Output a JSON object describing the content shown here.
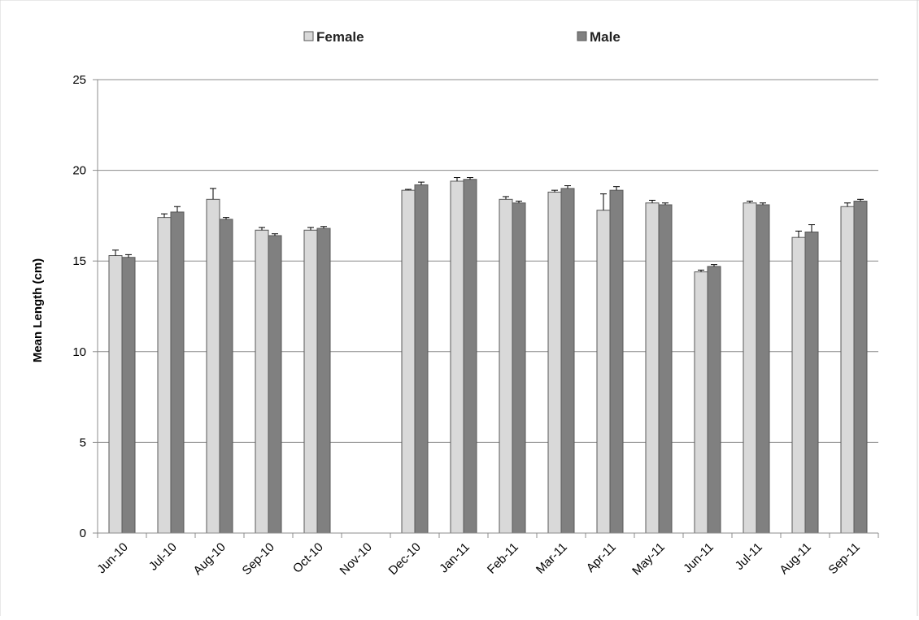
{
  "chart_data": {
    "type": "bar",
    "title": "",
    "xlabel": "",
    "ylabel": "Mean Length (cm)",
    "ylim": [
      0,
      25
    ],
    "yticks": [
      0,
      5,
      10,
      15,
      20,
      25
    ],
    "grid": "horizontal",
    "legend_position": "top-center",
    "error_bars": true,
    "categories": [
      "Jun-10",
      "Jul-10",
      "Aug-10",
      "Sep-10",
      "Oct-10",
      "Nov-10",
      "Dec-10",
      "Jan-11",
      "Feb-11",
      "Mar-11",
      "Apr-11",
      "May-11",
      "Jun-11",
      "Jul-11",
      "Aug-11",
      "Sep-11"
    ],
    "series": [
      {
        "name": "Female",
        "color": "#d9d9d9",
        "values": [
          15.3,
          17.4,
          18.4,
          16.7,
          16.7,
          null,
          18.9,
          19.4,
          18.4,
          18.8,
          17.8,
          18.2,
          14.4,
          18.2,
          16.3,
          18.0
        ],
        "errors": [
          0.3,
          0.2,
          0.6,
          0.15,
          0.15,
          null,
          0.05,
          0.2,
          0.15,
          0.1,
          0.9,
          0.15,
          0.1,
          0.1,
          0.35,
          0.2
        ]
      },
      {
        "name": "Male",
        "color": "#808080",
        "values": [
          15.2,
          17.7,
          17.3,
          16.4,
          16.8,
          null,
          19.2,
          19.5,
          18.2,
          19.0,
          18.9,
          18.1,
          14.7,
          18.1,
          16.6,
          18.3
        ],
        "errors": [
          0.15,
          0.3,
          0.1,
          0.1,
          0.1,
          null,
          0.15,
          0.1,
          0.1,
          0.15,
          0.2,
          0.1,
          0.1,
          0.1,
          0.4,
          0.1
        ]
      }
    ]
  }
}
